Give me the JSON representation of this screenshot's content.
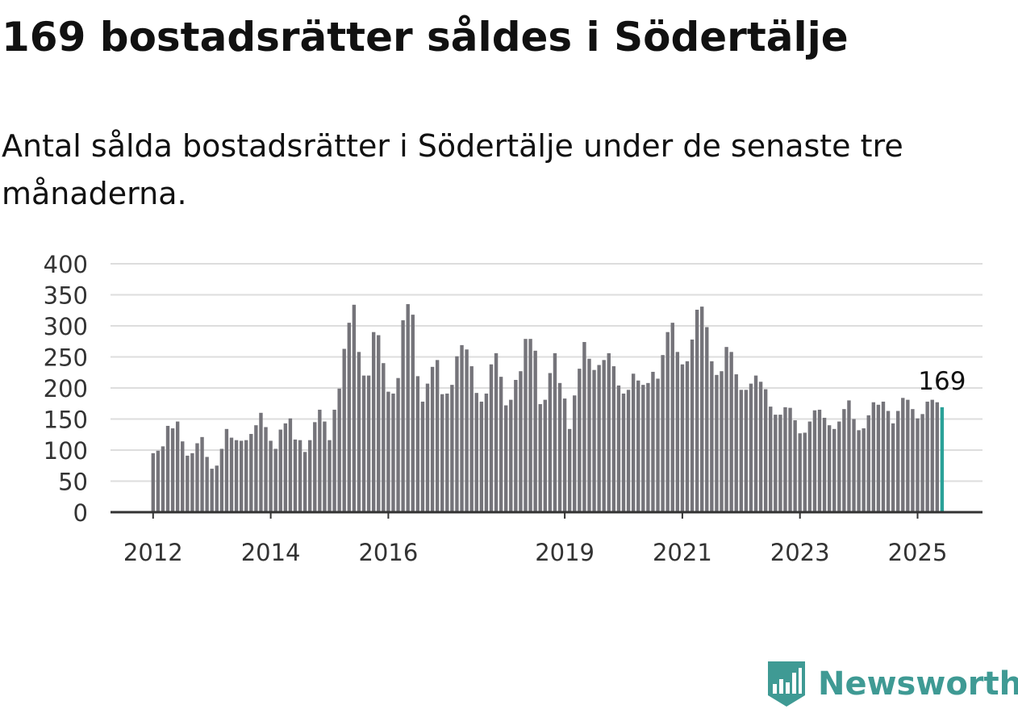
{
  "header": {
    "title": "169 bostadsrätter såldes i Södertälje",
    "subtitle": "Antal sålda bostadsrätter i Södertälje under de senaste tre månaderna."
  },
  "brand": {
    "name": "Newsworthy",
    "icon": "bar-chart-badge-icon",
    "color": "#3f9a94"
  },
  "colors": {
    "bar": "#75747a",
    "highlight": "#2aa198",
    "grid": "#dddddd",
    "axis": "#333333"
  },
  "chart_data": {
    "type": "bar",
    "title": "169 bostadsrätter såldes i Södertälje",
    "subtitle": "Antal sålda bostadsrätter i Södertälje under de senaste tre månaderna.",
    "xlabel": "",
    "ylabel": "",
    "ylim": [
      0,
      400
    ],
    "yticks": [
      "0",
      "50",
      "100",
      "150",
      "200",
      "250",
      "300",
      "350",
      "400"
    ],
    "xticks": [
      "2012",
      "2014",
      "2016",
      "2019",
      "2021",
      "2023",
      "2025"
    ],
    "grid": true,
    "legend": "none",
    "highlight_last": true,
    "annotation": "169",
    "values": [
      95,
      99,
      106,
      139,
      135,
      146,
      114,
      91,
      95,
      111,
      121,
      89,
      70,
      75,
      102,
      134,
      120,
      116,
      115,
      116,
      126,
      140,
      160,
      137,
      115,
      102,
      133,
      143,
      151,
      117,
      116,
      97,
      116,
      145,
      165,
      146,
      116,
      165,
      199,
      263,
      305,
      334,
      258,
      220,
      220,
      290,
      285,
      240,
      194,
      191,
      216,
      309,
      335,
      318,
      219,
      178,
      207,
      234,
      245,
      190,
      191,
      205,
      251,
      269,
      262,
      235,
      192,
      178,
      191,
      238,
      256,
      218,
      172,
      181,
      213,
      227,
      279,
      279,
      260,
      174,
      181,
      224,
      256,
      208,
      183,
      134,
      188,
      231,
      274,
      247,
      229,
      237,
      245,
      256,
      235,
      204,
      191,
      197,
      223,
      212,
      205,
      208,
      226,
      215,
      253,
      290,
      305,
      258,
      238,
      243,
      278,
      326,
      331,
      298,
      243,
      221,
      227,
      266,
      258,
      222,
      197,
      197,
      207,
      220,
      210,
      198,
      170,
      157,
      157,
      169,
      168,
      148,
      127,
      128,
      146,
      164,
      165,
      152,
      140,
      134,
      146,
      166,
      180,
      150,
      132,
      135,
      156,
      177,
      173,
      178,
      163,
      143,
      163,
      184,
      181,
      166,
      151,
      158,
      178,
      181,
      177,
      169
    ]
  }
}
